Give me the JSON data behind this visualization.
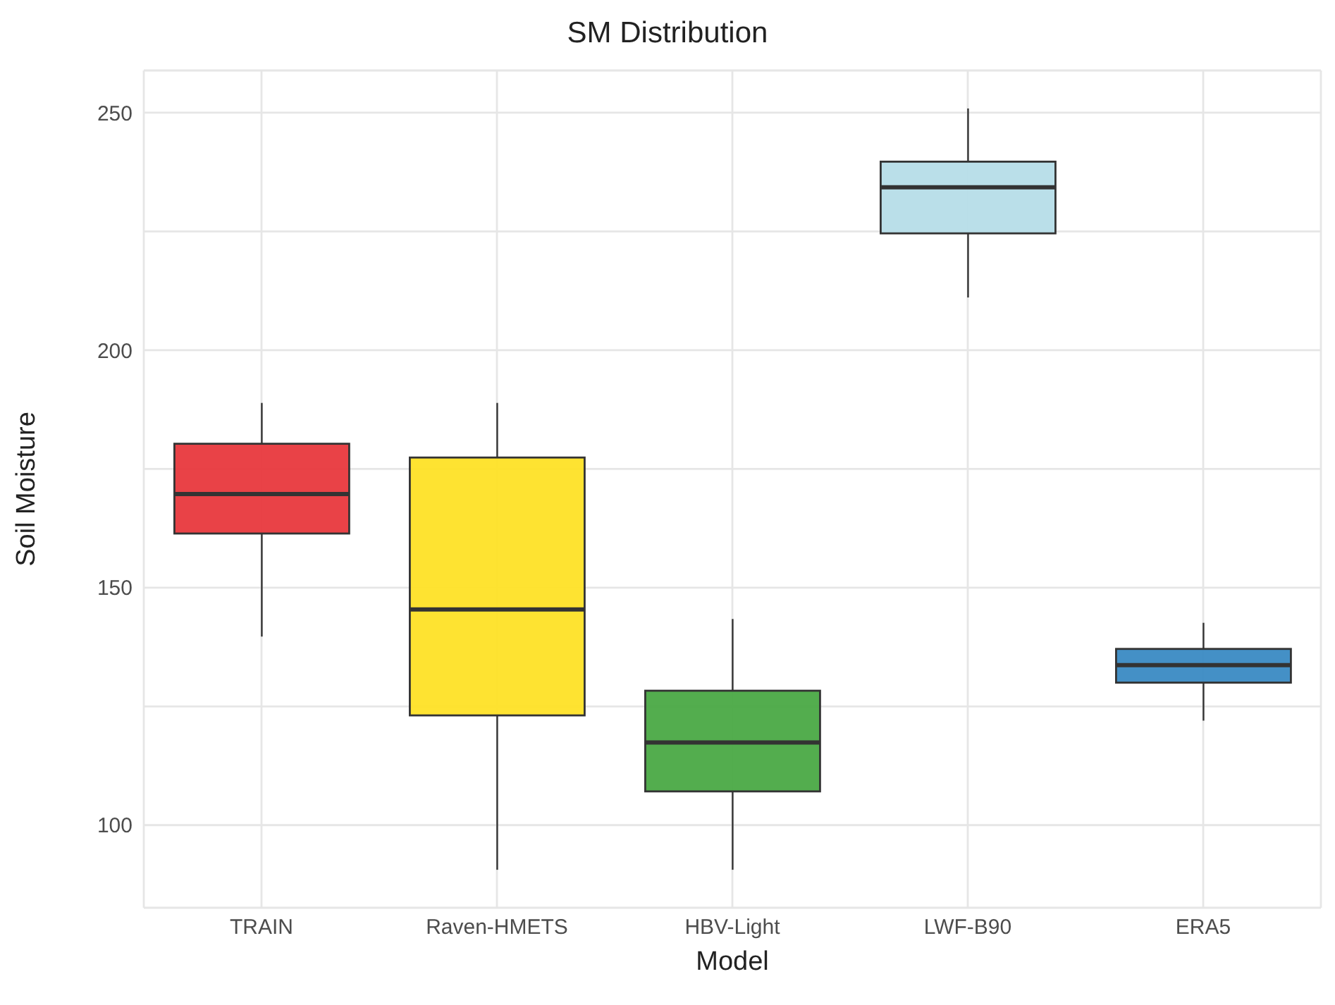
{
  "chart_data": {
    "type": "box",
    "title": "SM Distribution",
    "xlabel": "Model",
    "ylabel": "Soil Moisture",
    "categories": [
      "TRAIN",
      "Raven-HMETS",
      "HBV-Light",
      "LWF-B90",
      "ERA5"
    ],
    "colors": [
      "#e8383d",
      "#fee226",
      "#4aa945",
      "#b6dde8",
      "#3a8ac3"
    ],
    "boxes": [
      {
        "low": 139.7,
        "q1": 161.4,
        "median": 169.7,
        "q3": 180.3,
        "high": 188.9
      },
      {
        "low": 90.6,
        "q1": 123.1,
        "median": 145.4,
        "q3": 177.4,
        "high": 188.9
      },
      {
        "low": 90.6,
        "q1": 107.1,
        "median": 117.4,
        "q3": 128.3,
        "high": 143.4
      },
      {
        "low": 211.1,
        "q1": 224.6,
        "median": 234.3,
        "q3": 239.7,
        "high": 250.9
      },
      {
        "low": 122,
        "q1": 130,
        "median": 133.7,
        "q3": 137.1,
        "high": 142.6
      }
    ],
    "ylim": [
      82.6,
      258.9
    ],
    "yticks": [
      100,
      {
        "value": 125,
        "label": null
      },
      150,
      {
        "value": 175,
        "label": null
      },
      200,
      {
        "value": 225,
        "label": null
      },
      250
    ],
    "grid": true,
    "legend": false
  }
}
